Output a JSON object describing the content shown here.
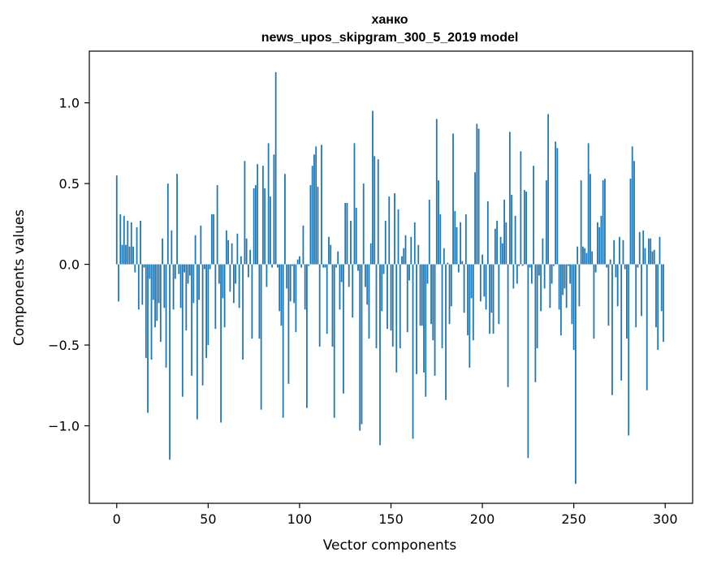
{
  "chart_data": {
    "type": "bar",
    "title_line1": "ханко",
    "title_line2": "news_upos_skipgram_300_5_2019 model",
    "xlabel": "Vector components",
    "ylabel": "Components values",
    "xlim": [
      -15,
      315
    ],
    "ylim": [
      -1.48,
      1.32
    ],
    "xticks": [
      0,
      50,
      100,
      150,
      200,
      250,
      300
    ],
    "xtick_labels": [
      "0",
      "50",
      "100",
      "150",
      "200",
      "250",
      "300"
    ],
    "yticks": [
      -1.0,
      -0.5,
      0.0,
      0.5,
      1.0
    ],
    "ytick_labels": [
      "−1.0",
      "−0.5",
      "0.0",
      "0.5",
      "1.0"
    ],
    "grid": false,
    "bar_color": "#1f77b4",
    "values": [
      0.55,
      -0.23,
      0.31,
      0.12,
      0.3,
      0.12,
      0.27,
      0.11,
      0.26,
      0.11,
      -0.05,
      0.23,
      -0.28,
      0.27,
      -0.25,
      -0.02,
      -0.58,
      -0.92,
      -0.09,
      -0.59,
      -0.22,
      -0.39,
      -0.35,
      -0.24,
      -0.48,
      0.16,
      -0.27,
      -0.64,
      0.5,
      -1.21,
      0.21,
      -0.28,
      -0.09,
      0.56,
      -0.06,
      -0.27,
      -0.82,
      -0.05,
      -0.41,
      -0.12,
      -0.07,
      -0.69,
      -0.24,
      0.18,
      -0.96,
      -0.22,
      0.24,
      -0.75,
      -0.03,
      -0.58,
      -0.5,
      -0.03,
      0.31,
      0.31,
      -0.4,
      0.49,
      -0.12,
      -0.98,
      -0.21,
      -0.39,
      0.21,
      0.15,
      -0.17,
      0.13,
      -0.24,
      -0.12,
      0.19,
      -0.27,
      0.05,
      -0.59,
      0.64,
      0.16,
      -0.08,
      0.09,
      -0.46,
      0.47,
      0.49,
      0.62,
      -0.46,
      -0.9,
      0.61,
      0.47,
      -0.14,
      0.75,
      0.42,
      -0.02,
      0.68,
      1.19,
      -0.02,
      -0.29,
      -0.38,
      -0.95,
      0.56,
      -0.15,
      -0.74,
      -0.23,
      -0.01,
      -0.24,
      -0.42,
      0.03,
      0.05,
      -0.02,
      0.24,
      -0.28,
      -0.89,
      -0.01,
      0.49,
      0.61,
      0.68,
      0.73,
      0.48,
      -0.51,
      0.74,
      -0.02,
      -0.02,
      -0.43,
      0.17,
      0.12,
      -0.51,
      -0.95,
      -0.02,
      0.08,
      -0.28,
      -0.11,
      -0.8,
      0.38,
      0.38,
      -0.14,
      0.27,
      -0.33,
      0.75,
      0.35,
      -0.04,
      -1.03,
      -0.99,
      0.5,
      -0.14,
      -0.25,
      -0.46,
      0.13,
      0.95,
      0.67,
      -0.52,
      0.65,
      -1.12,
      -0.29,
      -0.06,
      0.27,
      -0.4,
      0.42,
      -0.41,
      -0.51,
      0.44,
      -0.67,
      0.34,
      -0.52,
      0.05,
      0.1,
      0.18,
      -0.42,
      -0.1,
      0.17,
      -1.08,
      0.26,
      -0.68,
      0.12,
      -0.38,
      -0.38,
      -0.67,
      -0.82,
      -0.12,
      0.4,
      -0.37,
      -0.47,
      -0.69,
      0.9,
      0.52,
      0.31,
      -0.52,
      0.1,
      -0.84,
      0.01,
      -0.37,
      -0.26,
      0.81,
      0.33,
      0.23,
      -0.05,
      0.26,
      0.02,
      -0.3,
      0.31,
      -0.44,
      -0.64,
      -0.21,
      -0.47,
      0.57,
      0.87,
      0.84,
      -0.23,
      0.06,
      -0.2,
      -0.28,
      0.39,
      -0.43,
      -0.3,
      -0.43,
      0.22,
      0.27,
      -0.37,
      0.17,
      0.13,
      0.4,
      0.26,
      -0.76,
      0.82,
      0.43,
      -0.15,
      0.3,
      -0.12,
      -0.01,
      0.7,
      -0.01,
      0.46,
      0.45,
      -1.2,
      -0.02,
      -0.12,
      0.61,
      -0.73,
      -0.52,
      -0.07,
      -0.29,
      0.16,
      -0.15,
      0.52,
      0.93,
      -0.27,
      -0.12,
      -0.01,
      0.76,
      0.72,
      -0.28,
      -0.44,
      -0.19,
      -0.15,
      -0.27,
      -0.01,
      -0.12,
      -0.37,
      -0.53,
      -1.36,
      0.11,
      -0.26,
      0.52,
      0.11,
      0.1,
      0.07,
      0.75,
      0.56,
      0.08,
      -0.46,
      -0.05,
      0.26,
      0.23,
      0.3,
      0.52,
      0.53,
      -0.02,
      -0.38,
      0.03,
      -0.81,
      0.15,
      -0.08,
      -0.26,
      0.17,
      -0.72,
      0.15,
      -0.03,
      -0.46,
      -1.06,
      0.53,
      0.73,
      0.64,
      -0.39,
      -0.02,
      0.2,
      -0.32,
      0.21,
      0.1,
      -0.78,
      0.16,
      0.16,
      0.08,
      0.09,
      -0.39,
      -0.53,
      0.17,
      -0.29,
      -0.48
    ]
  }
}
